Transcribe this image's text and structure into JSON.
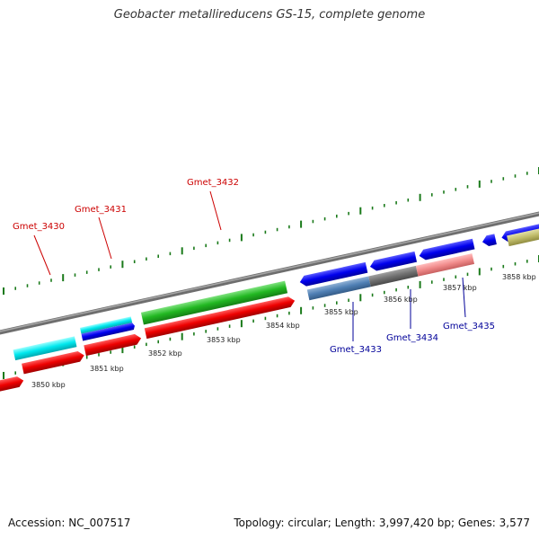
{
  "title": "Geobacter metallireducens GS-15, complete genome",
  "footer": {
    "accession": "Accession: NC_007517",
    "summary": "Topology: circular; Length: 3,997,420 bp; Genes: 3,577"
  },
  "colors": {
    "forward_label": "#cc0000",
    "reverse_label": "#000099",
    "tick": "#1a7a1a",
    "backbone": "#8c8c8c"
  },
  "kbp_labels": [
    "3850 kbp",
    "3851 kbp",
    "3852 kbp",
    "3853 kbp",
    "3854 kbp",
    "3855 kbp",
    "3856 kbp",
    "3857 kbp",
    "3858 kbp"
  ],
  "forward_gene_labels": [
    "Gmet_3430",
    "Gmet_3431",
    "Gmet_3432"
  ],
  "reverse_gene_labels": [
    "Gmet_3433",
    "Gmet_3434",
    "Gmet_3435"
  ]
}
